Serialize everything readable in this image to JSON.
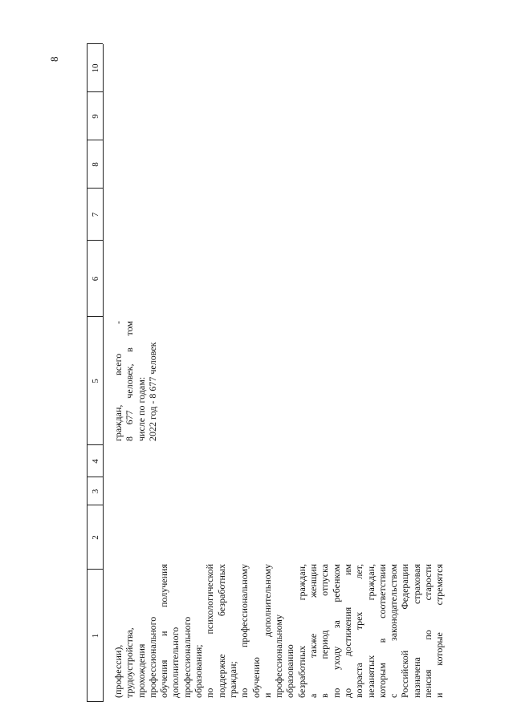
{
  "page_number": "8",
  "table": {
    "header": [
      "1",
      "2",
      "3",
      "4",
      "5",
      "6",
      "7",
      "8",
      "9",
      "10"
    ],
    "rows": [
      {
        "col1": [
          "(профессии),",
          "трудоустройства,",
          "прохождения",
          "профессионального",
          "обучения и получения",
          "дополнительного",
          "профессионального",
          "образования;",
          "по психологической",
          "поддержке безработных",
          "граждан;",
          "по профессиональному",
          "обучению",
          "и дополнительному",
          "профессиональному",
          "образованию",
          "безработных граждан,",
          "а также женщин",
          "в период отпуска",
          "по уходу за ребенком",
          "до достижения им",
          "возраста трех лет,",
          "незанятых граждан,",
          "которым в соответствии",
          "с законодательством",
          "Российской Федерации",
          "назначена страховая",
          "пенсия по старости",
          "и которые стремятся"
        ],
        "col5": [
          "граждан, всего -",
          "8 677 человек, в том",
          "числе по годам:",
          "2022 год - 8 677 человек"
        ]
      }
    ]
  }
}
